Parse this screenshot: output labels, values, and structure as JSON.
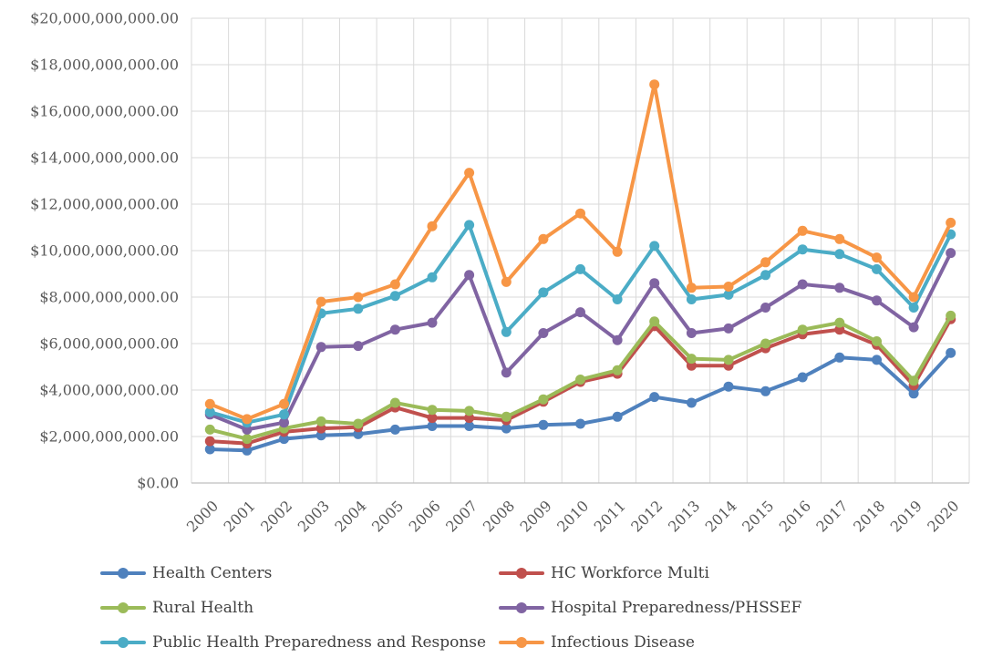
{
  "chart_data": {
    "type": "line",
    "title": "",
    "xlabel": "",
    "ylabel": "",
    "grid": true,
    "legend_position": "bottom",
    "x_tick_labels": [
      "2000",
      "2001",
      "2002",
      "2003",
      "2004",
      "2005",
      "2006",
      "2007",
      "2008",
      "2009",
      "2010",
      "2011",
      "2012",
      "2013",
      "2014",
      "2015",
      "2016",
      "2017",
      "2018",
      "2019",
      "2020"
    ],
    "y_axis": {
      "min": 0,
      "max": 20000000000,
      "step": 2000000000,
      "tick_labels": [
        "$0.00",
        "$2,000,000,000.00",
        "$4,000,000,000.00",
        "$6,000,000,000.00",
        "$8,000,000,000.00",
        "$10,000,000,000.00",
        "$12,000,000,000.00",
        "$14,000,000,000.00",
        "$16,000,000,000.00",
        "$18,000,000,000.00",
        "$20,000,000,000.00"
      ]
    },
    "series": [
      {
        "name": "Health Centers",
        "color": "#4F81BD",
        "values": [
          1450000000,
          1400000000,
          1900000000,
          2050000000,
          2100000000,
          2300000000,
          2450000000,
          2450000000,
          2350000000,
          2500000000,
          2550000000,
          2850000000,
          3700000000,
          3450000000,
          4150000000,
          3950000000,
          4550000000,
          5400000000,
          5300000000,
          3850000000,
          5600000000
        ]
      },
      {
        "name": "HC Workforce Multi",
        "color": "#C0504D",
        "values": [
          1800000000,
          1700000000,
          2200000000,
          2350000000,
          2400000000,
          3250000000,
          2800000000,
          2800000000,
          2700000000,
          3500000000,
          4350000000,
          4700000000,
          6750000000,
          5050000000,
          5050000000,
          5800000000,
          6400000000,
          6600000000,
          5950000000,
          4200000000,
          7050000000
        ]
      },
      {
        "name": "Rural Health",
        "color": "#9BBB59",
        "values": [
          2300000000,
          1900000000,
          2350000000,
          2650000000,
          2550000000,
          3450000000,
          3150000000,
          3100000000,
          2850000000,
          3600000000,
          4450000000,
          4850000000,
          6950000000,
          5350000000,
          5300000000,
          6000000000,
          6600000000,
          6900000000,
          6100000000,
          4400000000,
          7200000000
        ]
      },
      {
        "name": "Hospital Preparedness/PHSSEF",
        "color": "#8064A2",
        "values": [
          2950000000,
          2300000000,
          2600000000,
          5850000000,
          5900000000,
          6600000000,
          6900000000,
          8950000000,
          4750000000,
          6450000000,
          7350000000,
          6150000000,
          8600000000,
          6450000000,
          6650000000,
          7550000000,
          8550000000,
          8400000000,
          7850000000,
          6700000000,
          9900000000
        ]
      },
      {
        "name": "Public Health Preparedness and Response",
        "color": "#4BACC6",
        "values": [
          3050000000,
          2600000000,
          2950000000,
          7300000000,
          7500000000,
          8050000000,
          8850000000,
          11100000000,
          6500000000,
          8200000000,
          9200000000,
          7900000000,
          10200000000,
          7900000000,
          8100000000,
          8950000000,
          10050000000,
          9850000000,
          9200000000,
          7550000000,
          10700000000
        ]
      },
      {
        "name": "Infectious Disease",
        "color": "#F79646",
        "values": [
          3400000000,
          2750000000,
          3400000000,
          7800000000,
          8000000000,
          8550000000,
          11050000000,
          13350000000,
          8650000000,
          10500000000,
          11600000000,
          9950000000,
          17150000000,
          8400000000,
          8450000000,
          9500000000,
          10850000000,
          10500000000,
          9700000000,
          8000000000,
          11200000000
        ]
      }
    ],
    "colors": {
      "background": "#FFFFFF",
      "gridline": "#D9D9D9",
      "axis_line": "#BFBFBF",
      "axis_text": "#595959",
      "legend_text": "#404040"
    }
  }
}
